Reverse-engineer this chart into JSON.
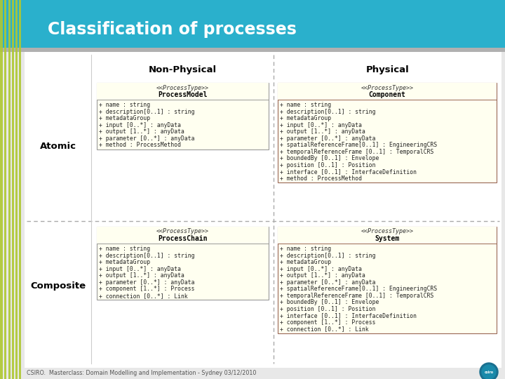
{
  "title": "Classification of processes",
  "title_bg": "#2ab0cc",
  "stripe_color": "#afc832",
  "footer": "CSIRO.  Masterclass: Domain Modelling and Implementation - Sydney 03/12/2010",
  "col_labels": [
    "Non-Physical",
    "Physical"
  ],
  "row_labels": [
    "Atomic",
    "Composite"
  ],
  "bg_color": "#e8e8e8",
  "content_bg": "#ffffff",
  "box_fill": "#fffff0",
  "box_border_nonphys": "#999999",
  "box_border_phys": "#996655",
  "boxes": {
    "top_left": {
      "stereotype": "<<ProcessType>>",
      "name": "ProcessModel",
      "attrs": [
        "+ name : string",
        "+ description[0..1] : string",
        "+ metadataGroup",
        "+ input [0..*] : anyData",
        "+ output [1..*] : anyData",
        "+ parameter [0..*] : anyData",
        "+ method : ProcessMethod"
      ]
    },
    "top_right": {
      "stereotype": "<<ProcessType>>",
      "name": "Component",
      "attrs": [
        "+ name : string",
        "+ description[0..1] : string",
        "+ metadataGroup",
        "+ input [0..*] : anyData",
        "+ output [1..*] : anyData",
        "+ parameter [0..*] : anyData",
        "+ spatialReferenceFrame[0..1] : EngineeringCRS",
        "+ temporalReferenceFrame [0..1] : TemporalCRS",
        "+ boundedBy [0..1] : Envelope",
        "+ position [0..1] : Position",
        "+ interface [0..1] : InterfaceDefinition",
        "+ method : ProcessMethod"
      ]
    },
    "bot_left": {
      "stereotype": "<<ProcessType>>",
      "name": "ProcessChain",
      "attrs": [
        "+ name : string",
        "+ description[0..1] : string",
        "+ metadataGroup",
        "+ input [0..*] : anyData",
        "+ output [1..*] : anyData",
        "+ parameter [0..*] : anyData",
        "+ component [1..*] : Process",
        "+ connection [0..*] : Link"
      ]
    },
    "bot_right": {
      "stereotype": "<<ProcessType>>",
      "name": "System",
      "attrs": [
        "+ name : string",
        "+ description[0..1] : string",
        "+ metadataGroup",
        "+ input [0..*] : anyData",
        "+ output [1..*] : anyData",
        "+ parameter [0..*] : anyData",
        "+ spatialReferenceFrame[0..1] : EngineeringCRS",
        "+ temporalReferenceFrame [0..1] : TemporalCRS",
        "+ boundedBy [0..1] : Envelope",
        "+ position [0..1] : Position",
        "+ interface [0..1] : InterfaceDefinition",
        "+ component [1..*] : Process",
        "+ connection [0..*] : Link"
      ]
    }
  }
}
